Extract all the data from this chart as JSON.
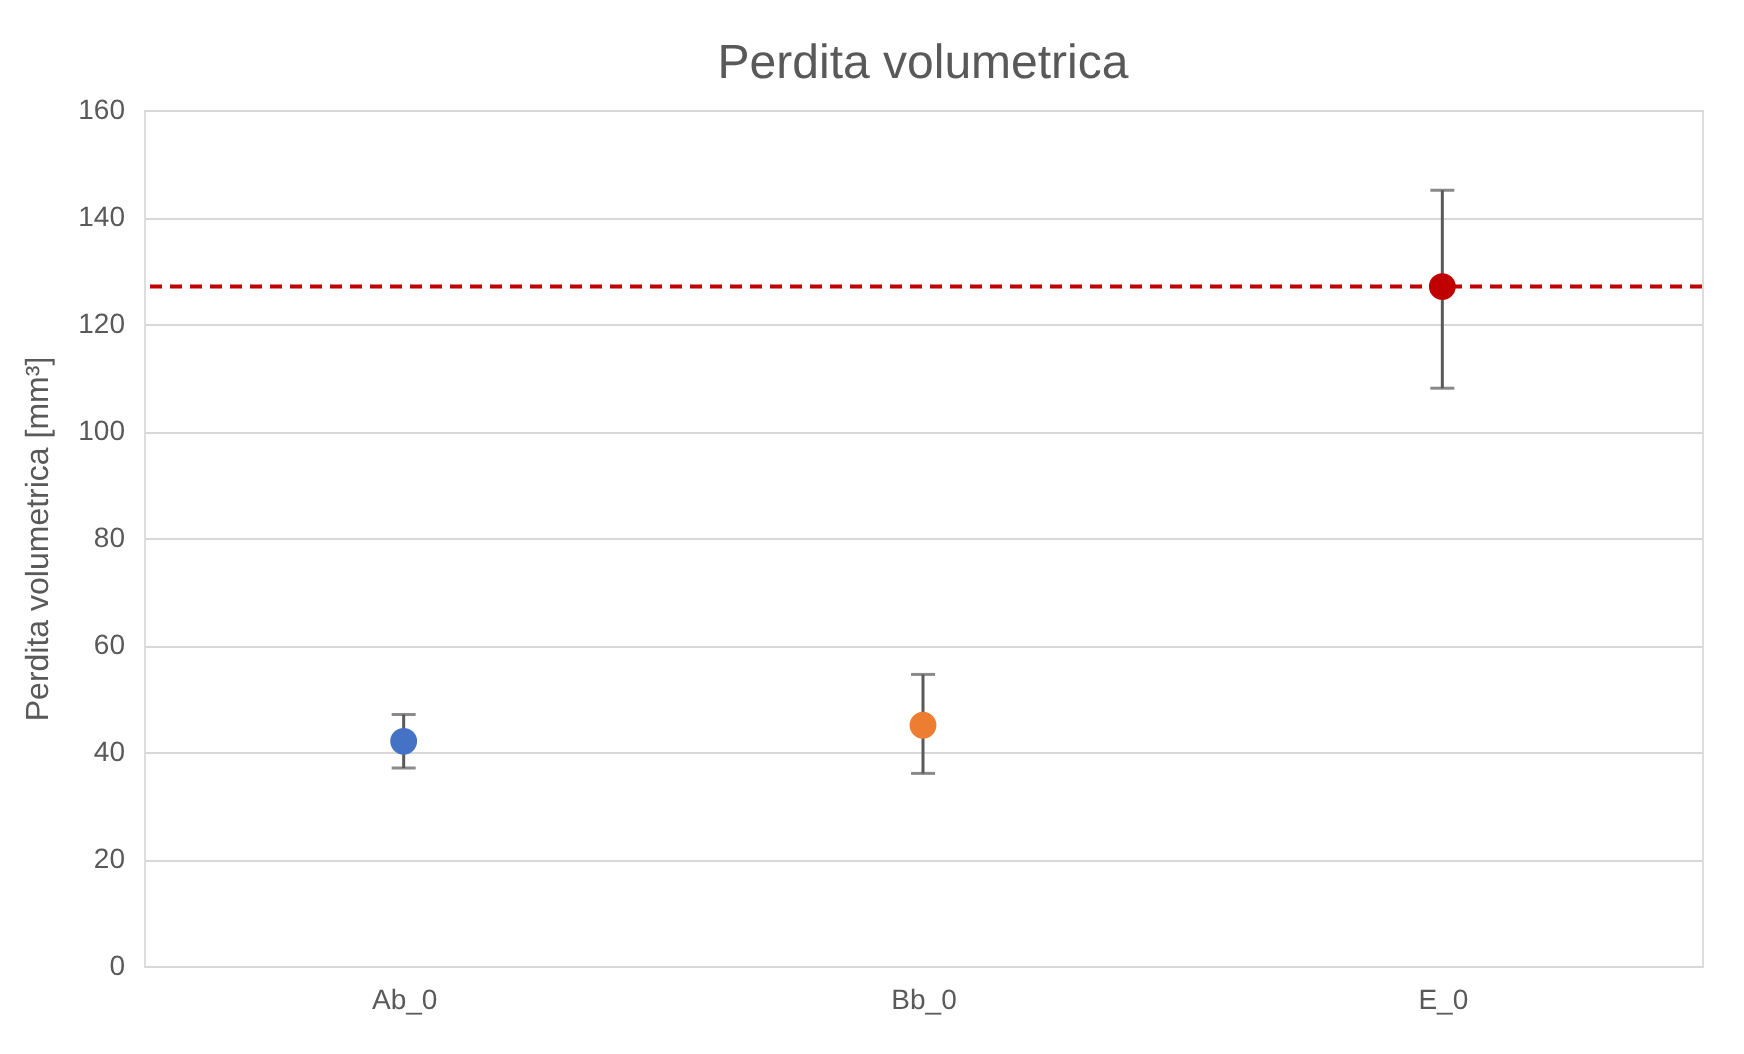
{
  "chart_data": {
    "type": "scatter",
    "title": "Perdita volumetrica",
    "ylabel": "Perdita volumetrica [mm³]",
    "categories": [
      "Ab_0",
      "Bb_0",
      "E_0"
    ],
    "values": [
      42,
      45,
      127
    ],
    "colors": [
      "#4472c4",
      "#ed7d31",
      "#c00000"
    ],
    "errors": [
      [
        37,
        47
      ],
      [
        36,
        54.5
      ],
      [
        108,
        145
      ]
    ],
    "ylim": [
      0,
      160
    ],
    "yticks": [
      0,
      20,
      40,
      60,
      80,
      100,
      120,
      140,
      160
    ],
    "grid": "y",
    "marker": "circle",
    "ref_lines": [
      {
        "axis": "y",
        "value": 127,
        "color": "#c00000",
        "line_style": "dashed"
      }
    ]
  }
}
